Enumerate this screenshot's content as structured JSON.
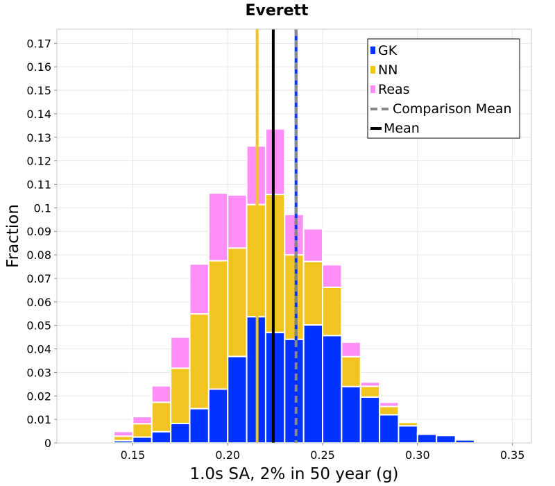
{
  "chart_data": {
    "type": "bar",
    "title": "Everett",
    "xlabel": "1.0s SA, 2% in 50 year (g)",
    "ylabel": "Fraction",
    "xlim": [
      0.11,
      0.36
    ],
    "ylim": [
      0,
      0.176
    ],
    "bin_width": 0.01,
    "stacked": true,
    "grid": true,
    "legend_position": "top-right",
    "x_ticks": [
      {
        "value": 0.15,
        "label": "0.15"
      },
      {
        "value": 0.2,
        "label": "0.20"
      },
      {
        "value": 0.25,
        "label": "0.25"
      },
      {
        "value": 0.3,
        "label": "0.30"
      },
      {
        "value": 0.35,
        "label": "0.35"
      }
    ],
    "y_ticks": [
      {
        "value": 0,
        "label": "0"
      },
      {
        "value": 0.01,
        "label": "0.01"
      },
      {
        "value": 0.02,
        "label": "0.02"
      },
      {
        "value": 0.03,
        "label": "0.03"
      },
      {
        "value": 0.04,
        "label": "0.04"
      },
      {
        "value": 0.05,
        "label": "0.05"
      },
      {
        "value": 0.06,
        "label": "0.06"
      },
      {
        "value": 0.07,
        "label": "0.07"
      },
      {
        "value": 0.08,
        "label": "0.08"
      },
      {
        "value": 0.09,
        "label": "0.09"
      },
      {
        "value": 0.1,
        "label": "0.1"
      },
      {
        "value": 0.11,
        "label": "0.11"
      },
      {
        "value": 0.12,
        "label": "0.12"
      },
      {
        "value": 0.13,
        "label": "0.13"
      },
      {
        "value": 0.14,
        "label": "0.14"
      },
      {
        "value": 0.15,
        "label": "0.15"
      },
      {
        "value": 0.16,
        "label": "0.16"
      },
      {
        "value": 0.17,
        "label": "0.17"
      }
    ],
    "bin_centers": [
      0.115,
      0.125,
      0.135,
      0.145,
      0.155,
      0.165,
      0.175,
      0.185,
      0.195,
      0.205,
      0.215,
      0.225,
      0.235,
      0.245,
      0.255,
      0.265,
      0.275,
      0.285,
      0.295,
      0.305,
      0.315,
      0.325,
      0.335,
      0.345
    ],
    "series": [
      {
        "name": "GK",
        "color": "#0033ff",
        "values": [
          0,
          0,
          0,
          0.001,
          0.0025,
          0.0048,
          0.0083,
          0.0146,
          0.0229,
          0.0368,
          0.0537,
          0.047,
          0.0441,
          0.0502,
          0.0457,
          0.024,
          0.0195,
          0.012,
          0.0073,
          0.0037,
          0.0032,
          0.0013,
          0.0005,
          0.0002
        ]
      },
      {
        "name": "NN",
        "color": "#f2c41f",
        "values": [
          0,
          0,
          0,
          0.0019,
          0.0057,
          0.0125,
          0.0235,
          0.0403,
          0.0546,
          0.0461,
          0.0477,
          0.0587,
          0.0359,
          0.027,
          0.0205,
          0.0127,
          0.0046,
          0.0035,
          0.0015,
          0.0006,
          0.0002,
          0,
          0,
          0
        ]
      },
      {
        "name": "Reas",
        "color": "#ff8ff7",
        "values": [
          0,
          0,
          0.0004,
          0.002,
          0.003,
          0.007,
          0.0132,
          0.0212,
          0.0288,
          0.0226,
          0.0249,
          0.0279,
          0.0172,
          0.0139,
          0.0096,
          0.0062,
          0.0018,
          0.0018,
          0.0005,
          0.0003,
          0,
          0,
          0,
          0
        ]
      }
    ],
    "lines": [
      {
        "name": "Comparison Mean",
        "x": 0.236,
        "color": "#0033ff",
        "style": "dashed",
        "overlay_color": "#888888"
      },
      {
        "name": "Mean",
        "x": 0.224,
        "color": "#000000",
        "style": "solid"
      }
    ],
    "extra_lines": [
      {
        "x": 0.2155,
        "color": "#f2c41f",
        "style": "solid"
      }
    ],
    "legend_entries": [
      {
        "label": "GK",
        "kind": "box",
        "color": "#0033ff"
      },
      {
        "label": "NN",
        "kind": "box",
        "color": "#f2c41f"
      },
      {
        "label": "Reas",
        "kind": "box",
        "color": "#ff8ff7"
      },
      {
        "label": "Comparison Mean",
        "kind": "dashed",
        "color": "#888888"
      },
      {
        "label": "Mean",
        "kind": "solid",
        "color": "#000000"
      }
    ]
  }
}
